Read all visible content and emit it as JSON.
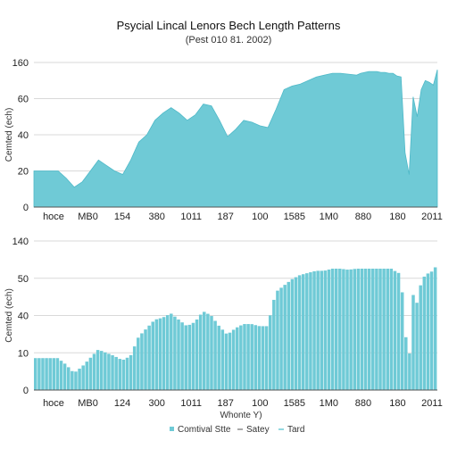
{
  "colors": {
    "fill": "#6fcad6",
    "stroke": "#4fb9c8",
    "grid": "#d9d9d9",
    "axis": "#555555"
  },
  "chart_data": [
    {
      "type": "area",
      "title": "Psycial Lincal Lenors Bech Length Patterns",
      "subtitle": "(Pest 010 81. 2002)",
      "ylabel": "Cemted (ech)",
      "xlabel": "",
      "ylim": [
        0,
        160
      ],
      "yticks": [
        "0",
        "20",
        "40",
        "60",
        "160"
      ],
      "ytick_values": [
        0,
        40,
        80,
        120,
        160
      ],
      "xticks": [
        "hoce",
        "MB0",
        "154",
        "380",
        "1011",
        "187",
        "100",
        "1585",
        "1M0",
        "880",
        "180",
        "2011"
      ],
      "grid": true,
      "x": [
        0,
        2,
        4,
        6,
        8,
        10,
        12,
        14,
        16,
        18,
        20,
        22,
        24,
        26,
        28,
        30,
        32,
        34,
        36,
        38,
        40,
        42,
        44,
        46,
        48,
        50,
        52,
        54,
        56,
        58,
        60,
        62,
        64,
        66,
        68,
        70,
        72,
        74,
        76,
        78,
        80,
        81,
        82,
        83,
        84,
        85,
        86,
        87,
        88,
        89,
        90,
        91,
        92,
        93,
        94,
        95,
        96,
        97,
        98,
        99,
        100
      ],
      "values": [
        40,
        40,
        40,
        40,
        32,
        22,
        28,
        40,
        52,
        46,
        40,
        36,
        52,
        72,
        80,
        96,
        104,
        110,
        104,
        96,
        102,
        114,
        112,
        96,
        78,
        86,
        96,
        94,
        90,
        88,
        108,
        130,
        134,
        136,
        140,
        144,
        146,
        148,
        148,
        147,
        146,
        148,
        149,
        150,
        150,
        150,
        149,
        149,
        148,
        148,
        145,
        144,
        60,
        36,
        122,
        100,
        130,
        140,
        138,
        135,
        152
      ]
    },
    {
      "type": "bar",
      "title": "",
      "ylabel": "Cemted (ech)",
      "xlabel": "Whonte Y)",
      "ylim": [
        0,
        140
      ],
      "yticks": [
        "0",
        "10",
        "40",
        "50",
        "140"
      ],
      "ytick_values": [
        0,
        35,
        70,
        105,
        140
      ],
      "xticks": [
        "hoce",
        "MB0",
        "124",
        "300",
        "1011",
        "187",
        "100",
        "1585",
        "1M0",
        "880",
        "180",
        "2011"
      ],
      "grid": true,
      "x": [
        0,
        2,
        4,
        6,
        8,
        10,
        12,
        14,
        16,
        18,
        20,
        22,
        24,
        26,
        28,
        30,
        32,
        34,
        36,
        38,
        40,
        42,
        44,
        46,
        48,
        50,
        52,
        54,
        56,
        58,
        60,
        62,
        64,
        66,
        68,
        70,
        72,
        74,
        76,
        78,
        80,
        81,
        82,
        83,
        84,
        85,
        86,
        87,
        88,
        89,
        90,
        91,
        92,
        93,
        94,
        95,
        96,
        97,
        98,
        99,
        100
      ],
      "values": [
        30,
        30,
        30,
        30,
        24,
        16,
        22,
        30,
        38,
        35,
        32,
        28,
        32,
        50,
        58,
        66,
        68,
        72,
        66,
        60,
        64,
        74,
        70,
        60,
        52,
        58,
        62,
        62,
        60,
        60,
        92,
        98,
        104,
        108,
        110,
        112,
        112,
        114,
        114,
        113,
        114,
        114,
        114,
        114,
        114,
        114,
        114,
        114,
        114,
        114,
        110,
        110,
        60,
        22,
        90,
        82,
        100,
        108,
        110,
        112,
        118
      ]
    }
  ],
  "legend": {
    "position": "bottom-center",
    "items": [
      {
        "label": "Comtival Stte",
        "style": "swatch"
      },
      {
        "label": "Satey",
        "style": "dash"
      },
      {
        "label": "Tard",
        "style": "line"
      }
    ]
  }
}
